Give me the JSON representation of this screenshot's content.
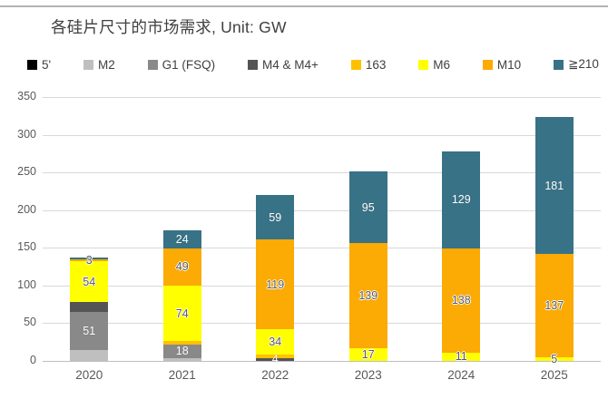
{
  "title": "各硅片尺寸的市场需求, Unit: GW",
  "chart_data": {
    "type": "bar",
    "stacked": true,
    "title": "各硅片尺寸的市场需求",
    "unit": "GW",
    "categories": [
      "2020",
      "2021",
      "2022",
      "2023",
      "2024",
      "2025"
    ],
    "series": [
      {
        "name": "5'",
        "color": "#000000",
        "values": [
          0,
          0,
          0,
          0,
          0,
          0
        ],
        "labels": [
          null,
          null,
          null,
          null,
          null,
          null
        ],
        "label_style": "light"
      },
      {
        "name": "M2",
        "color": "#bfbfbf",
        "values": [
          14,
          4,
          0,
          0,
          0,
          0
        ],
        "labels": [
          null,
          null,
          null,
          null,
          null,
          null
        ],
        "label_style": "light"
      },
      {
        "name": "G1 (FSQ)",
        "color": "#898989",
        "values": [
          51,
          18,
          0,
          0,
          0,
          0
        ],
        "labels": [
          "51",
          "18",
          null,
          null,
          null,
          null
        ],
        "label_style": "light"
      },
      {
        "name": "M4 & M4+",
        "color": "#545454",
        "values": [
          13,
          0,
          4,
          0,
          0,
          0
        ],
        "labels": [
          null,
          null,
          "4",
          null,
          null,
          null
        ],
        "label_style": "light"
      },
      {
        "name": "163",
        "color": "#ffc000",
        "values": [
          0,
          4,
          4,
          0,
          0,
          0
        ],
        "labels": [
          null,
          null,
          null,
          null,
          null,
          null
        ],
        "label_style": "dark"
      },
      {
        "name": "M6",
        "color": "#ffff00",
        "values": [
          54,
          74,
          34,
          17,
          11,
          5
        ],
        "labels": [
          "54",
          "74",
          "34",
          "17",
          "11",
          "5"
        ],
        "label_style": "dark"
      },
      {
        "name": "M10",
        "color": "#fcaa04",
        "values": [
          3,
          49,
          119,
          139,
          138,
          137
        ],
        "labels": [
          "3",
          "49",
          "119",
          "139",
          "138",
          "137"
        ],
        "label_style": "dark"
      },
      {
        "name": "≧210",
        "color": "#377287",
        "values": [
          2,
          24,
          59,
          95,
          129,
          181
        ],
        "labels": [
          null,
          "24",
          "59",
          "95",
          "129",
          "181"
        ],
        "label_style": "light"
      }
    ],
    "ylim": [
      0,
      350
    ],
    "yticks": [
      0,
      50,
      100,
      150,
      200,
      250,
      300,
      350
    ],
    "grid": true,
    "legend_position": "top"
  }
}
